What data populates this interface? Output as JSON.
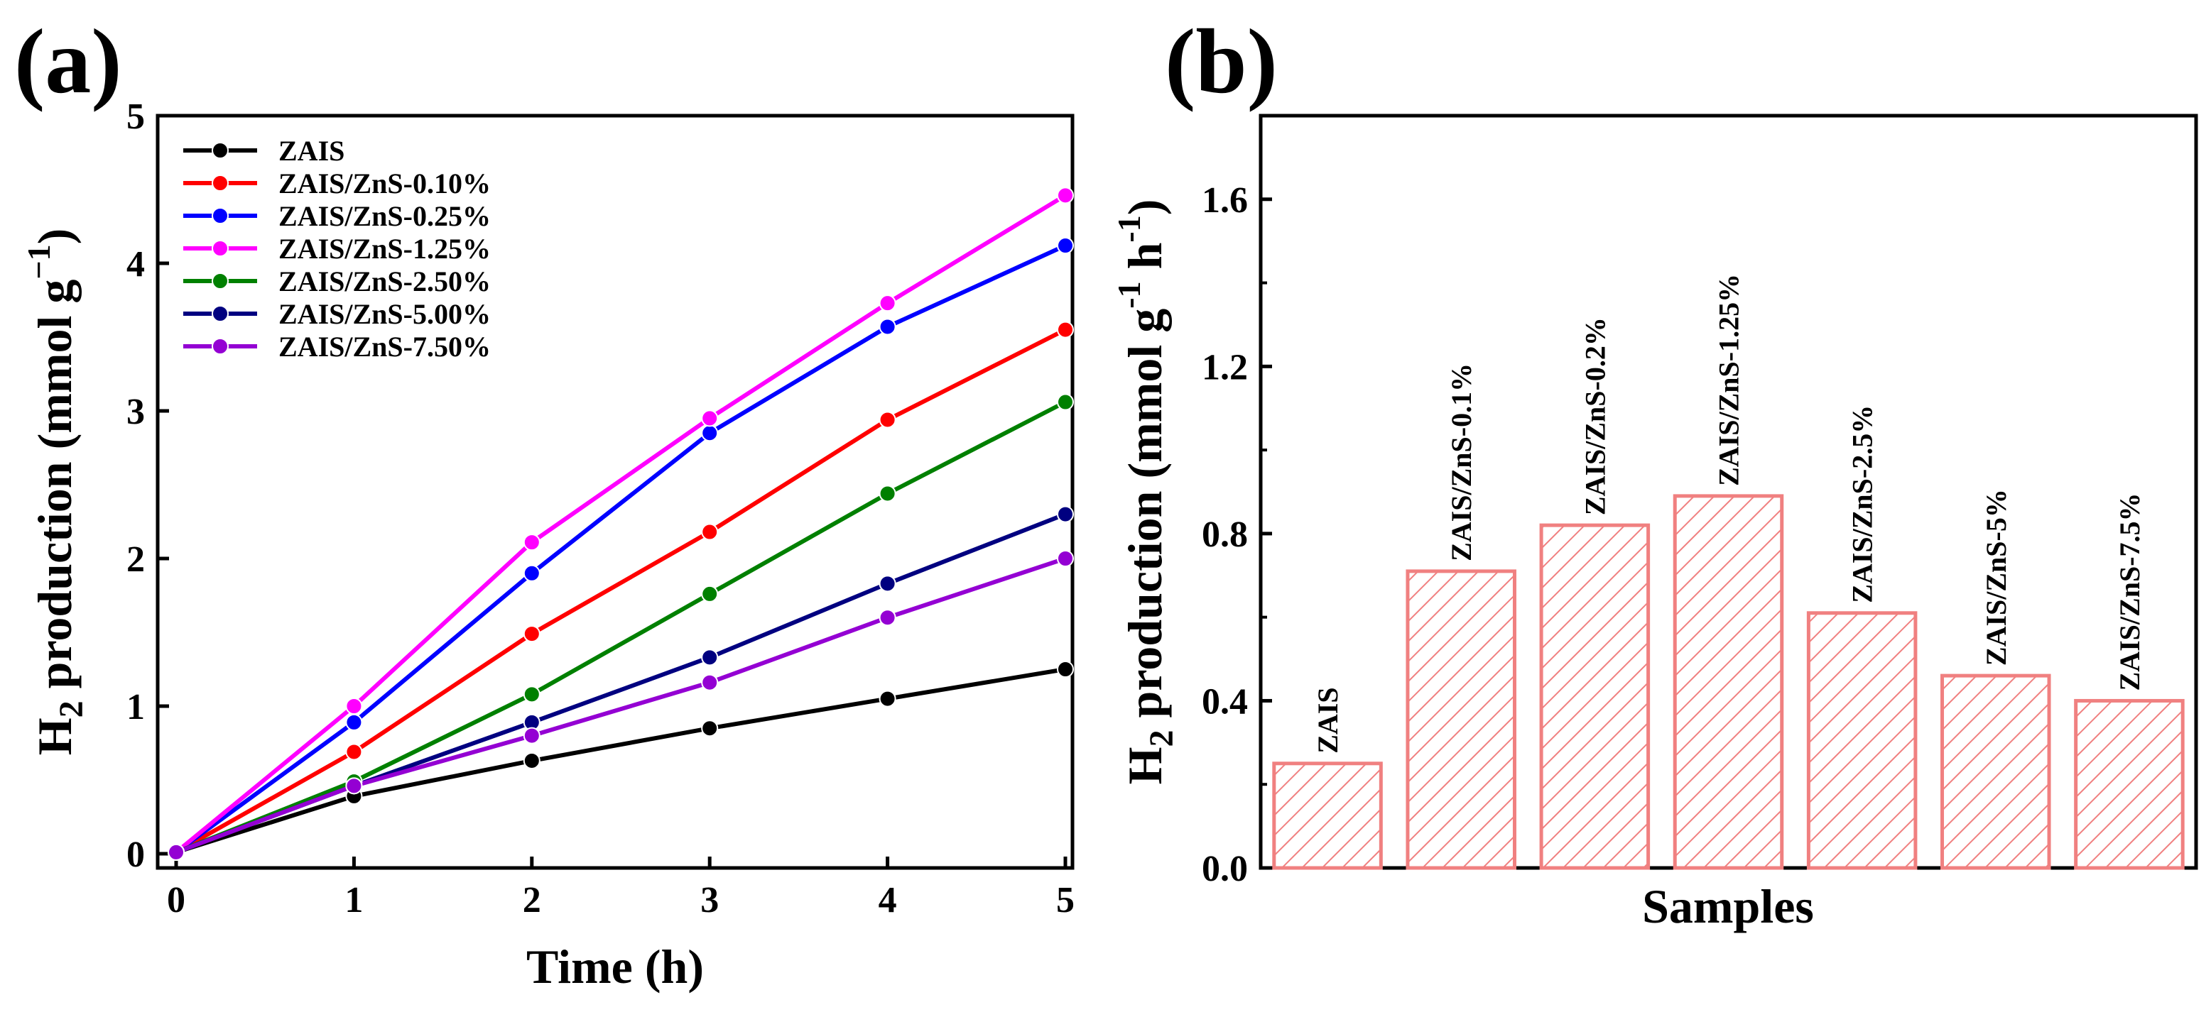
{
  "figure": {
    "panels": [
      {
        "label": "(a)"
      },
      {
        "label": "(b)"
      }
    ]
  },
  "chart_data": [
    {
      "type": "line",
      "panel_label": "(a)",
      "title": "",
      "xlabel": "Time (h)",
      "ylabel": "H2 production (mmol g−1)",
      "ylabel_parts": {
        "main": "H",
        "sub": "2",
        "rest": " production (mmol g",
        "sup": "−1",
        "close": ")"
      },
      "xlim": [
        0,
        5
      ],
      "ylim": [
        0,
        5
      ],
      "x_ticks": [
        0,
        1,
        2,
        3,
        4,
        5
      ],
      "y_ticks": [
        0,
        1,
        2,
        3,
        4,
        5
      ],
      "x": [
        0,
        1,
        2,
        3,
        4,
        5
      ],
      "grid": false,
      "legend_position": "top-left",
      "series": [
        {
          "name": "ZAIS",
          "color": "#000000",
          "values": [
            0.01,
            0.39,
            0.63,
            0.85,
            1.05,
            1.25
          ]
        },
        {
          "name": "ZAIS/ZnS-0.10%",
          "color": "#ff0000",
          "values": [
            0.01,
            0.69,
            1.49,
            2.18,
            2.94,
            3.55
          ]
        },
        {
          "name": "ZAIS/ZnS-0.25%",
          "color": "#0000ff",
          "values": [
            0.01,
            0.89,
            1.9,
            2.85,
            3.57,
            4.12
          ]
        },
        {
          "name": "ZAIS/ZnS-1.25%",
          "color": "#ff00ff",
          "values": [
            0.01,
            1.0,
            2.11,
            2.95,
            3.73,
            4.46
          ]
        },
        {
          "name": "ZAIS/ZnS-2.50%",
          "color": "#008000",
          "values": [
            0.01,
            0.49,
            1.08,
            1.76,
            2.44,
            3.06
          ]
        },
        {
          "name": "ZAIS/ZnS-5.00%",
          "color": "#000080",
          "values": [
            0.01,
            0.46,
            0.89,
            1.33,
            1.83,
            2.3
          ]
        },
        {
          "name": "ZAIS/ZnS-7.50%",
          "color": "#9400d3",
          "values": [
            0.01,
            0.46,
            0.8,
            1.16,
            1.6,
            2.0
          ]
        }
      ]
    },
    {
      "type": "bar",
      "panel_label": "(b)",
      "title": "",
      "xlabel": "Samples",
      "ylabel": "H2 production (mmol g−1 h−1)",
      "ylabel_parts": {
        "main": "H",
        "sub": "2",
        "rest": " production (mmol g",
        "sup1": "-1",
        "mid": " h",
        "sup2": "-1",
        "close": ")"
      },
      "ylim": [
        0,
        1.8
      ],
      "y_ticks": [
        "0.0",
        "0.4",
        "0.8",
        "1.2",
        "1.6"
      ],
      "y_tick_values": [
        0,
        0.4,
        0.8,
        1.2,
        1.6
      ],
      "grid": false,
      "bar_color": "#f08080",
      "categories": [
        "ZAIS",
        "ZAIS/ZnS-0.1%",
        "ZAIS/ZnS-0.2%",
        "ZAIS/ZnS-1.25%",
        "ZAIS/ZnS-2.5%",
        "ZAIS/ZnS-5%",
        "ZAIS/ZnS-7.5%"
      ],
      "values": [
        0.25,
        0.71,
        0.82,
        0.89,
        0.61,
        0.46,
        0.4
      ]
    }
  ]
}
